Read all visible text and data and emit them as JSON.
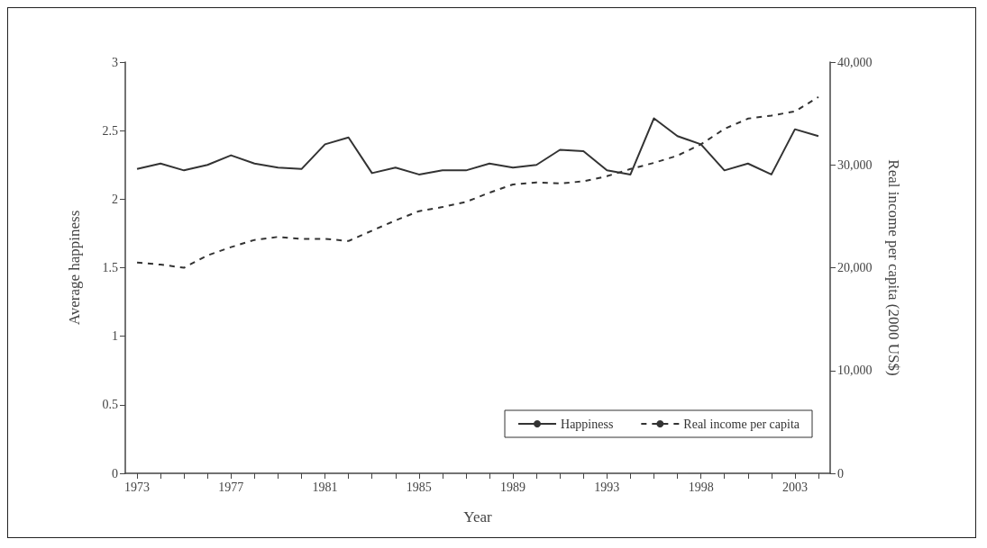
{
  "chart_data": {
    "type": "line",
    "xlabel": "Year",
    "ylabel": "Average happiness",
    "y2label": "Real income per capita (2000 US$)",
    "categories": [
      "1973",
      null,
      null,
      null,
      "1977",
      null,
      null,
      null,
      "1981",
      null,
      null,
      null,
      "1985",
      null,
      null,
      null,
      "1989",
      null,
      null,
      null,
      "1993",
      null,
      null,
      null,
      "1998",
      null,
      null,
      null,
      "2003",
      null
    ],
    "series": [
      {
        "name": "Happiness",
        "color": "#333333",
        "line_style": "solid",
        "values": [
          2.22,
          2.26,
          2.21,
          2.25,
          2.32,
          2.26,
          2.23,
          2.22,
          2.4,
          2.45,
          2.19,
          2.23,
          2.18,
          2.21,
          2.21,
          2.26,
          2.23,
          2.25,
          2.36,
          2.35,
          2.21,
          2.18,
          2.59,
          2.46,
          2.4,
          2.21,
          2.26,
          2.18,
          2.51,
          2.46
        ]
      },
      {
        "name": "Real income per capita",
        "color": "#333333",
        "line_style": "dashed",
        "axis": "y2",
        "values": [
          20500,
          20300,
          20000,
          21200,
          22000,
          22700,
          23000,
          22800,
          22800,
          22600,
          23600,
          24600,
          25500,
          25900,
          26400,
          27300,
          28100,
          28300,
          28200,
          28400,
          28900,
          29600,
          30200,
          30900,
          32000,
          33500,
          34500,
          34800,
          35200,
          36600
        ]
      }
    ],
    "ylim": [
      0,
      3
    ],
    "yticks": [
      0,
      0.5,
      1,
      1.5,
      2,
      2.5,
      3
    ],
    "y2lim": [
      0,
      40000
    ],
    "y2ticks": [
      0,
      {
        "value": 10000,
        "label": "10,000"
      },
      {
        "value": 20000,
        "label": "20,000"
      },
      {
        "value": 30000,
        "label": "30,000"
      },
      {
        "value": 40000,
        "label": "40,000"
      }
    ],
    "grid": false,
    "legend": "bottom right",
    "marker": "none"
  }
}
